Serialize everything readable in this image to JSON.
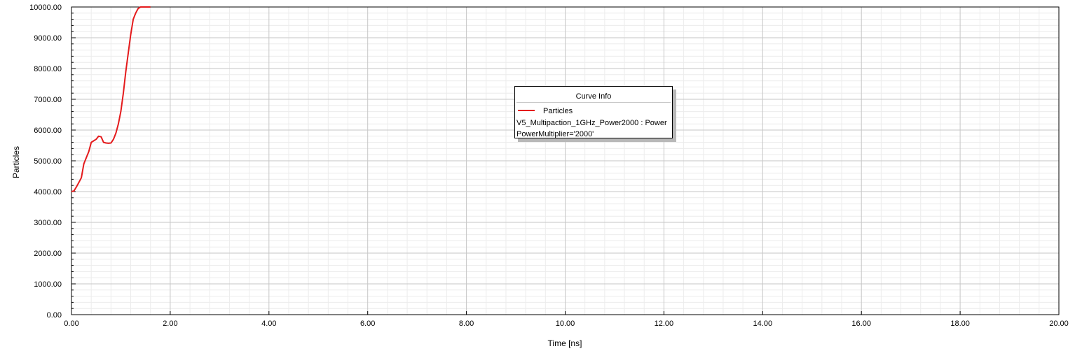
{
  "chart_data": {
    "type": "line",
    "title": "",
    "xlabel": "Time [ns]",
    "ylabel": "Particles",
    "xlim": [
      0,
      20
    ],
    "ylim": [
      0,
      10000
    ],
    "x_ticks": [
      "0.00",
      "2.00",
      "4.00",
      "6.00",
      "8.00",
      "10.00",
      "12.00",
      "14.00",
      "16.00",
      "18.00",
      "20.00"
    ],
    "y_ticks": [
      "0.00",
      "1000.00",
      "2000.00",
      "3000.00",
      "4000.00",
      "5000.00",
      "6000.00",
      "7000.00",
      "8000.00",
      "9000.00",
      "10000.00"
    ],
    "grid": true,
    "series": [
      {
        "name": "Particles",
        "color": "#e41a1c",
        "x": [
          0.0,
          0.05,
          0.1,
          0.15,
          0.2,
          0.25,
          0.3,
          0.35,
          0.4,
          0.45,
          0.5,
          0.55,
          0.6,
          0.65,
          0.7,
          0.75,
          0.8,
          0.85,
          0.9,
          0.95,
          1.0,
          1.05,
          1.1,
          1.15,
          1.2,
          1.25,
          1.3,
          1.35,
          1.4,
          1.45,
          1.5,
          1.55,
          1.6
        ],
        "y": [
          4000,
          4020,
          4150,
          4300,
          4450,
          4900,
          5100,
          5300,
          5600,
          5650,
          5700,
          5800,
          5780,
          5600,
          5580,
          5570,
          5580,
          5700,
          5900,
          6200,
          6600,
          7200,
          7900,
          8500,
          9100,
          9600,
          9800,
          9950,
          10000,
          10000,
          10000,
          10000,
          10000
        ]
      }
    ]
  },
  "legend": {
    "title": "Curve Info",
    "series_label": "Particles",
    "expression": "V5_Multipaction_1GHz_Power2000 : Power",
    "variation": "PowerMultiplier='2000'"
  }
}
